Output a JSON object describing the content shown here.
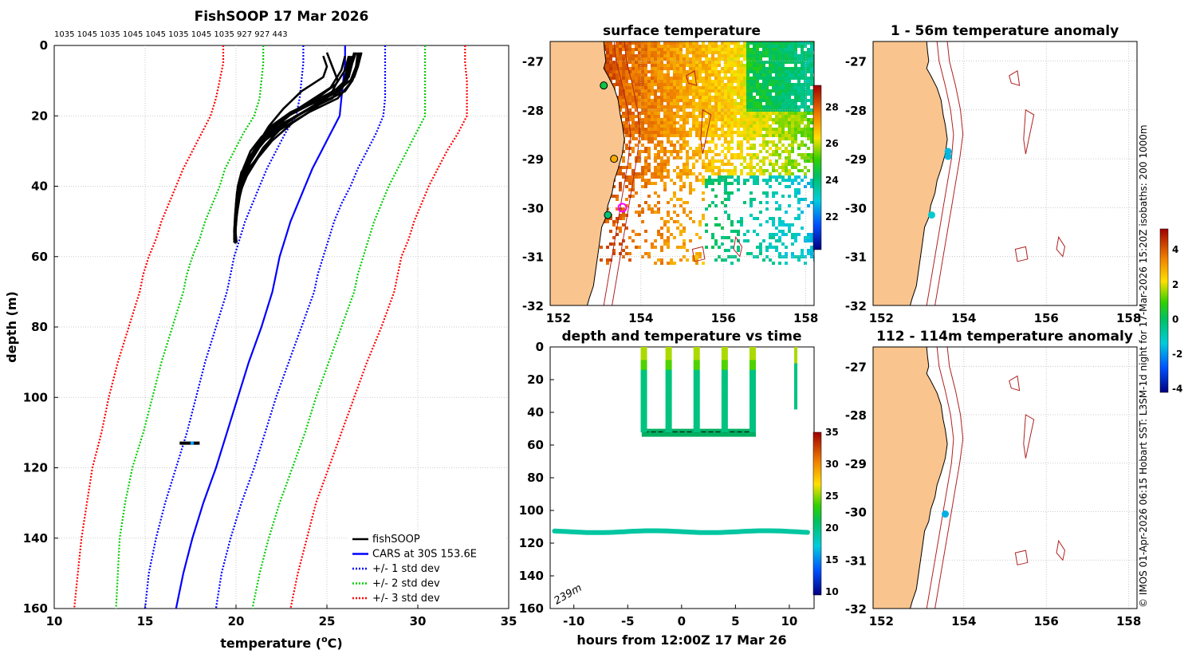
{
  "figure": {
    "credit": "© IMOS 01-Apr-2026 06:15 Hobart SST: L3SM-1d night for 17-Mar-2026 15:20Z isobaths: 200  1000m"
  },
  "chart_data": [
    {
      "id": "profile",
      "type": "line",
      "title": "FishSOOP 17 Mar 2026",
      "top_labels": "1035 1045 1035 1045 1045 1035 1045 1035 927 927 443",
      "xlabel": "temperature (°C)",
      "xlabel_main": "temperature (",
      "xlabel_sup": "o",
      "xlabel_end": "C)",
      "ylabel": "depth (m)",
      "xlim": [
        10,
        35
      ],
      "ylim": [
        160,
        0
      ],
      "xticks": [
        10,
        15,
        20,
        25,
        30,
        35
      ],
      "yticks": [
        0,
        20,
        40,
        60,
        80,
        100,
        120,
        140,
        160
      ],
      "grid": true,
      "legend_position": "bottom-right",
      "cars_depth": [
        0,
        5,
        10,
        15,
        20,
        25,
        30,
        35,
        40,
        45,
        50,
        55,
        60,
        65,
        70,
        80,
        90,
        100,
        110,
        120,
        130,
        140,
        150,
        160
      ],
      "series": [
        {
          "name": "fishSOOP",
          "color": "#000000",
          "style": "solid"
        },
        {
          "name": "CARS at 30S 153.6E",
          "color": "#0000ff",
          "style": "solid",
          "x": [
            26.0,
            26.0,
            25.9,
            25.8,
            25.7,
            25.2,
            24.7,
            24.2,
            23.8,
            23.4,
            23.0,
            22.7,
            22.4,
            22.2,
            22.0,
            21.4,
            20.7,
            20.1,
            19.5,
            18.9,
            18.2,
            17.6,
            17.1,
            16.7
          ]
        },
        {
          "name": "+/- 1 std dev",
          "color": "#0000ff",
          "style": "dotted",
          "upper": [
            28.2,
            28.2,
            28.2,
            28.2,
            28.1,
            27.7,
            27.2,
            26.7,
            26.3,
            25.8,
            25.4,
            25.1,
            24.8,
            24.5,
            24.3,
            23.6,
            22.9,
            22.2,
            21.6,
            21.0,
            20.3,
            19.7,
            19.2,
            18.9
          ],
          "lower": [
            23.7,
            23.7,
            23.6,
            23.5,
            23.3,
            22.7,
            22.2,
            21.7,
            21.3,
            20.9,
            20.5,
            20.2,
            19.9,
            19.7,
            19.5,
            18.9,
            18.3,
            17.8,
            17.3,
            16.7,
            16.1,
            15.6,
            15.2,
            15.0
          ]
        },
        {
          "name": "+/- 2 std dev",
          "color": "#00cc00",
          "style": "dotted",
          "upper": [
            30.4,
            30.4,
            30.4,
            30.4,
            30.4,
            29.9,
            29.4,
            28.9,
            28.4,
            28.0,
            27.6,
            27.3,
            27.0,
            26.7,
            26.5,
            25.8,
            25.1,
            24.4,
            23.8,
            23.1,
            22.4,
            21.8,
            21.3,
            20.9
          ],
          "lower": [
            21.5,
            21.5,
            21.4,
            21.3,
            21.0,
            20.4,
            19.9,
            19.4,
            19.1,
            18.7,
            18.3,
            18.0,
            17.6,
            17.3,
            17.1,
            16.5,
            15.9,
            15.4,
            14.9,
            14.3,
            13.9,
            13.6,
            13.5,
            13.4
          ]
        },
        {
          "name": "+/- 3 std dev",
          "color": "#ff0000",
          "style": "dotted",
          "upper": [
            32.6,
            32.6,
            32.7,
            32.7,
            32.7,
            32.2,
            31.6,
            31.1,
            30.6,
            30.2,
            29.8,
            29.5,
            29.1,
            28.9,
            28.7,
            28.0,
            27.2,
            26.5,
            25.8,
            25.1,
            24.4,
            23.9,
            23.4,
            23.0
          ],
          "lower": [
            19.3,
            19.3,
            19.1,
            18.9,
            18.6,
            18.1,
            17.6,
            17.1,
            16.7,
            16.3,
            15.9,
            15.6,
            15.2,
            14.9,
            14.7,
            14.1,
            13.5,
            13.0,
            12.6,
            12.1,
            11.8,
            11.5,
            11.3,
            11.1
          ]
        }
      ],
      "fishsoop_profiles": [
        {
          "depth": [
            2,
            6,
            10,
            13,
            15,
            18,
            22,
            27,
            32,
            36,
            40,
            45,
            50,
            55
          ],
          "x": [
            26.8,
            26.6,
            26.4,
            26.0,
            25.2,
            24.0,
            22.8,
            21.6,
            20.8,
            20.3,
            20.1,
            20.0,
            19.95,
            19.9
          ]
        },
        {
          "depth": [
            2,
            6,
            10,
            14,
            17,
            20,
            24,
            28,
            33,
            38,
            42,
            48,
            53
          ],
          "x": [
            26.5,
            26.3,
            26.1,
            25.6,
            24.5,
            23.3,
            22.1,
            21.2,
            20.6,
            20.2,
            20.05,
            19.95,
            19.9
          ]
        },
        {
          "depth": [
            2,
            6,
            9,
            12,
            15,
            19,
            23,
            28,
            33,
            38,
            44,
            50,
            55
          ],
          "x": [
            26.9,
            26.7,
            26.5,
            25.8,
            24.6,
            23.0,
            21.9,
            21.2,
            20.7,
            20.3,
            20.1,
            20.0,
            19.95
          ]
        },
        {
          "depth": [
            3,
            7,
            11,
            15,
            18,
            22,
            27,
            31,
            36,
            41,
            46,
            52
          ],
          "x": [
            26.3,
            26.1,
            25.9,
            25.3,
            24.1,
            22.6,
            21.5,
            20.9,
            20.5,
            20.2,
            20.05,
            19.95
          ]
        },
        {
          "depth": [
            2,
            6,
            10,
            14,
            18,
            23,
            28,
            33,
            38,
            43,
            48,
            54
          ],
          "x": [
            26.7,
            26.6,
            26.3,
            25.0,
            23.4,
            22.2,
            21.4,
            20.8,
            20.4,
            20.2,
            20.05,
            19.95
          ]
        },
        {
          "depth": [
            3,
            7,
            11,
            16,
            20,
            25,
            30,
            35,
            40,
            45,
            50,
            56
          ],
          "x": [
            26.2,
            26.0,
            25.5,
            24.2,
            22.8,
            21.8,
            21.0,
            20.6,
            20.3,
            20.1,
            20.0,
            19.9
          ]
        },
        {
          "depth": [
            2,
            5,
            9,
            13,
            17,
            21,
            26,
            31,
            35,
            40,
            46,
            52
          ],
          "x": [
            26.6,
            26.4,
            26.2,
            25.4,
            24.3,
            23.0,
            22.0,
            21.3,
            20.7,
            20.3,
            20.1,
            19.95
          ]
        },
        {
          "depth": [
            3,
            7,
            12,
            16,
            20,
            25,
            30,
            36,
            42,
            48,
            54
          ],
          "x": [
            26.0,
            25.8,
            25.2,
            24.0,
            22.8,
            21.7,
            21.0,
            20.5,
            20.2,
            20.0,
            19.9
          ]
        },
        {
          "depth": [
            2,
            6,
            10,
            15,
            19,
            24,
            29,
            34,
            39,
            45,
            50,
            55
          ],
          "x": [
            26.9,
            26.7,
            26.4,
            25.6,
            24.0,
            22.4,
            21.5,
            20.9,
            20.4,
            20.1,
            20.0,
            19.9
          ]
        },
        {
          "depth": [
            3,
            7,
            11,
            14,
            17,
            21,
            26,
            30,
            35,
            40,
            46,
            53
          ],
          "x": [
            26.4,
            26.2,
            26.0,
            25.3,
            24.0,
            22.5,
            21.4,
            20.8,
            20.4,
            20.15,
            20.0,
            19.9
          ]
        },
        {
          "depth": [
            2,
            6,
            10,
            14,
            18,
            22,
            27,
            32,
            37,
            42,
            47,
            55
          ],
          "x": [
            25.0,
            25.3,
            25.6,
            25.2,
            24.3,
            23.1,
            22.0,
            21.2,
            20.6,
            20.2,
            20.05,
            19.9
          ]
        },
        {
          "depth": [
            3,
            6,
            9,
            13,
            18,
            23,
            28,
            33,
            38,
            44,
            50,
            56
          ],
          "x": [
            24.8,
            25.0,
            24.8,
            23.6,
            22.6,
            21.8,
            21.2,
            20.7,
            20.3,
            20.1,
            20.0,
            19.95
          ]
        }
      ],
      "deep_cluster": {
        "depth": 113,
        "x": [
          16.9,
          18.0
        ]
      }
    },
    {
      "id": "surface_map",
      "type": "heatmap",
      "title": "surface temperature",
      "xlim": [
        151.8,
        158.2
      ],
      "ylim": [
        -32,
        -26.6
      ],
      "xticks": [
        152,
        154,
        156,
        158
      ],
      "yticks": [
        -27,
        -28,
        -29,
        -30,
        -31,
        -32
      ],
      "colorbar": {
        "min": 20.2,
        "max": 29.2,
        "ticks": [
          22,
          24,
          26,
          28
        ]
      },
      "markers": [
        {
          "lon": 153.1,
          "lat": -27.5,
          "value": 24.5
        },
        {
          "lon": 153.35,
          "lat": -29.0,
          "value": 27.0
        },
        {
          "lon": 153.2,
          "lat": -30.15,
          "value": 24.0
        },
        {
          "lon": 153.55,
          "lat": -30.0,
          "value": "highlight"
        }
      ]
    },
    {
      "id": "anom_upper",
      "type": "heatmap",
      "title": "1 - 56m temperature anomaly",
      "xlim": [
        151.8,
        158.2
      ],
      "ylim": [
        -32,
        -26.6
      ],
      "xticks": [
        152,
        154,
        156,
        158
      ],
      "yticks": [
        -27,
        -28,
        -29,
        -30,
        -31,
        -32
      ],
      "colorbar": {
        "min": -4.2,
        "max": 5.2,
        "ticks": [
          -4,
          -2,
          0,
          2,
          4
        ]
      },
      "markers": [
        {
          "lon": 153.62,
          "lat": -28.85,
          "value": -1.6
        },
        {
          "lon": 153.62,
          "lat": -28.95,
          "value": -1.6
        },
        {
          "lon": 153.22,
          "lat": -30.15,
          "value": -1.2
        }
      ]
    },
    {
      "id": "anom_deep",
      "type": "heatmap",
      "title": "112 - 114m temperature anomaly",
      "xlim": [
        151.8,
        158.2
      ],
      "ylim": [
        -32,
        -26.6
      ],
      "xticks": [
        152,
        154,
        156,
        158
      ],
      "yticks": [
        -27,
        -28,
        -29,
        -30,
        -31,
        -32
      ],
      "markers": [
        {
          "lon": 153.55,
          "lat": -30.05,
          "value": -1.7
        }
      ]
    },
    {
      "id": "time_section",
      "type": "scatter",
      "title": "depth and temperature vs time",
      "xlabel": "hours from 12:00Z 17 Mar 26",
      "xlim": [
        -12.2,
        12.3
      ],
      "ylim": [
        160,
        0
      ],
      "xticks": [
        -10,
        -5,
        0,
        5,
        10
      ],
      "yticks": [
        0,
        20,
        40,
        60,
        80,
        100,
        120,
        140,
        160
      ],
      "bottom_label": "239m",
      "colorbar": {
        "min": 9.5,
        "max": 35,
        "ticks": [
          10,
          15,
          20,
          25,
          30,
          35
        ]
      },
      "casts_hours": [
        -3.5,
        -1.2,
        1.4,
        4.0,
        6.6
      ],
      "cast_bottom_depth": [
        50,
        55
      ],
      "late_cast": {
        "x": [
          10.6,
          11.2
        ],
        "depth": [
          0,
          38
        ]
      },
      "deep_track": {
        "depth": 113,
        "temperature": 19,
        "x": [
          -11.8,
          11.8
        ]
      },
      "reference_line_depth": 52
    }
  ]
}
